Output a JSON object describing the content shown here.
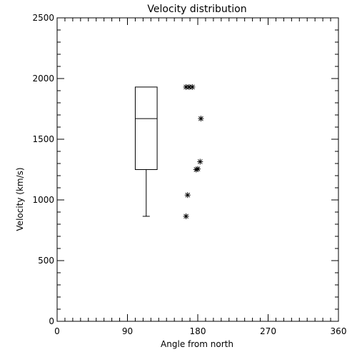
{
  "chart_data": {
    "type": "box",
    "title": "Velocity distribution",
    "xlabel": "Angle from north",
    "ylabel": "Velocity (km/s)",
    "xlim": [
      0,
      360
    ],
    "ylim": [
      0,
      2500
    ],
    "x_ticks": [
      0,
      90,
      180,
      270,
      360
    ],
    "y_ticks": [
      0,
      500,
      1000,
      1500,
      2000,
      2500
    ],
    "grid": false,
    "box": {
      "x_left": 100,
      "x_right": 128,
      "min": 865,
      "q1": 1250,
      "median": 1670,
      "q3": 1930,
      "max": 1930
    },
    "points": [
      {
        "x": 165,
        "y": 1930
      },
      {
        "x": 169,
        "y": 1930
      },
      {
        "x": 173,
        "y": 1930
      },
      {
        "x": 184,
        "y": 1670
      },
      {
        "x": 183,
        "y": 1315
      },
      {
        "x": 180,
        "y": 1255
      },
      {
        "x": 178,
        "y": 1250
      },
      {
        "x": 167,
        "y": 1040
      },
      {
        "x": 165,
        "y": 865
      }
    ]
  }
}
